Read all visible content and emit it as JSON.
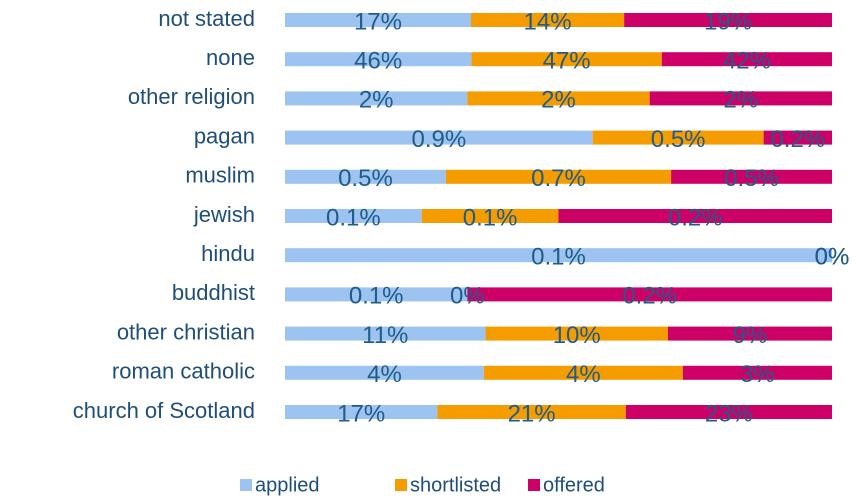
{
  "chart_data": {
    "type": "bar",
    "stacked_percent": true,
    "orientation": "horizontal",
    "categories": [
      "not stated",
      "none",
      "other religion",
      "pagan",
      "muslim",
      "jewish",
      "hindu",
      "buddhist",
      "other christian",
      "roman catholic",
      "church of Scotland"
    ],
    "series": [
      {
        "name": "applied",
        "color": "#9dc3f0",
        "values": [
          17,
          46,
          2,
          0.9,
          0.5,
          0.1,
          0.1,
          0.1,
          11,
          4,
          17
        ],
        "value_labels": [
          "17%",
          "46%",
          "2%",
          "0.9%",
          "0.5%",
          "0.1%",
          "0.1%",
          "0.1%",
          "11%",
          "4%",
          "17%"
        ]
      },
      {
        "name": "shortlisted",
        "color": "#f59c00",
        "values": [
          14,
          47,
          2,
          0.5,
          0.7,
          0.1,
          0,
          0,
          10,
          4,
          21
        ],
        "value_labels": [
          "14%",
          "47%",
          "2%",
          "0.5%",
          "0.7%",
          "0.1%",
          "0%",
          "0%",
          "10%",
          "4%",
          "21%"
        ]
      },
      {
        "name": "offered",
        "color": "#cc0066",
        "values": [
          19,
          42,
          2,
          0.2,
          0.5,
          0.2,
          0,
          0.2,
          9,
          3,
          23
        ],
        "value_labels": [
          "19%",
          "42%",
          "2%",
          "0.2%",
          "0.5%",
          "0.2%",
          "0%",
          "0.2%",
          "9%",
          "3%",
          "23%"
        ]
      }
    ],
    "legend": "bottom"
  }
}
